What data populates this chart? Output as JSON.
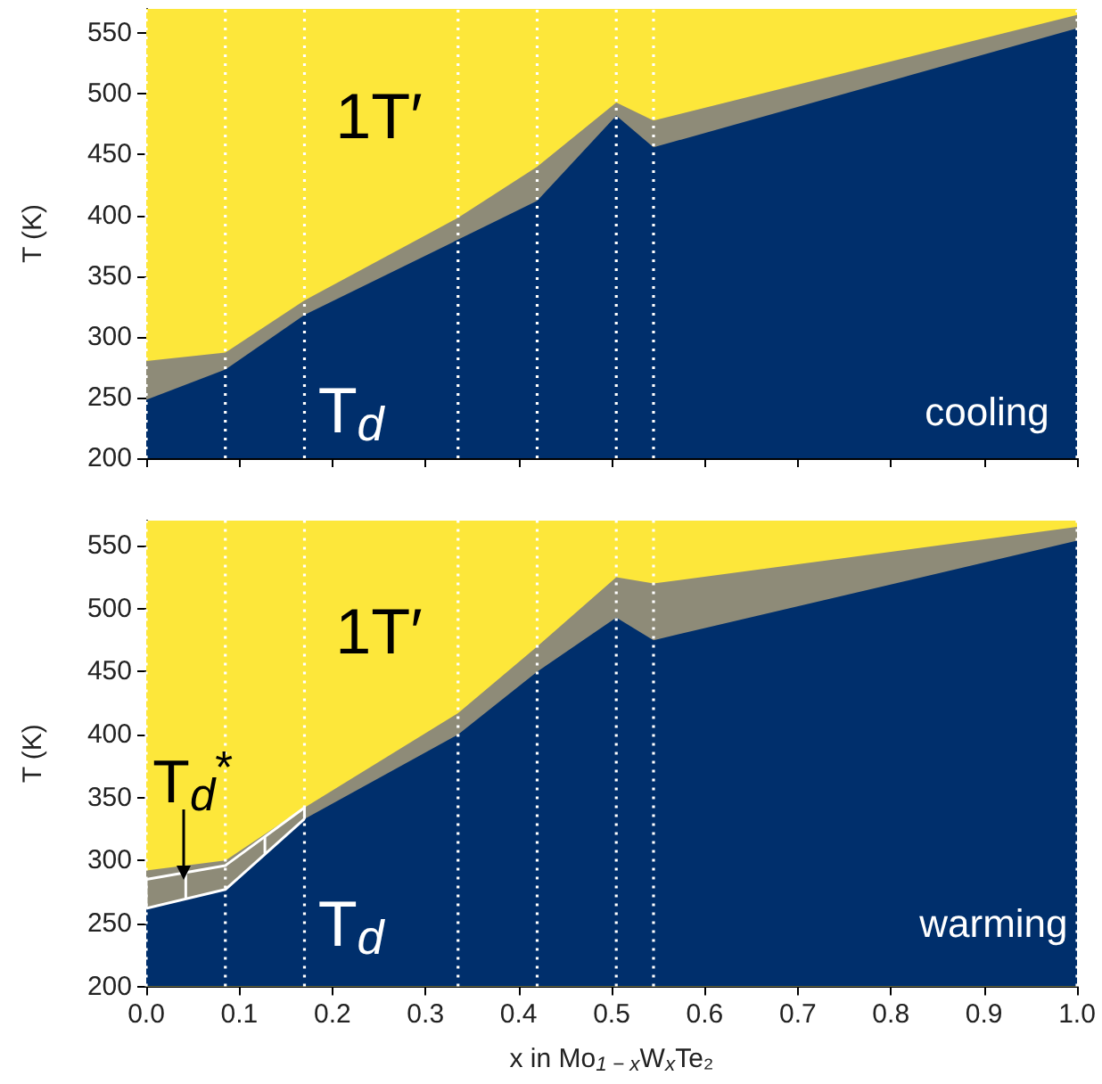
{
  "chart_data": [
    {
      "type": "area",
      "ylabel": "T (K)",
      "marker": "none",
      "tick_labels": "y",
      "x": [
        0,
        0.085,
        0.17,
        0.335,
        0.42,
        0.505,
        0.545,
        1.0
      ],
      "xlim": [
        0,
        1
      ],
      "xticks": [
        {
          "value": 0,
          "label": null
        },
        {
          "value": 0.1,
          "label": null
        },
        {
          "value": 0.2,
          "label": null
        },
        {
          "value": 0.3,
          "label": null
        },
        {
          "value": 0.4,
          "label": null
        },
        {
          "value": 0.5,
          "label": null
        },
        {
          "value": 0.6,
          "label": null
        },
        {
          "value": 0.7,
          "label": null
        },
        {
          "value": 0.8,
          "label": null
        },
        {
          "value": 0.9,
          "label": null
        },
        {
          "value": 1,
          "label": null
        }
      ],
      "ylim": [
        200,
        570
      ],
      "yticks": [
        200,
        250,
        300,
        350,
        400,
        450,
        500,
        550
      ],
      "series": [
        {
          "color": "#8e8b78",
          "values": [
            280,
            287,
            330,
            398,
            440,
            493,
            478,
            565
          ]
        },
        {
          "color": "#002f6c",
          "values": [
            248,
            273,
            318,
            380,
            412,
            482,
            456,
            554
          ]
        }
      ],
      "bands": [
        {
          "axis": "y",
          "from": 200,
          "to": 570,
          "color": "#fde73a"
        }
      ],
      "ref_lines": [
        {
          "axis": "x",
          "value": 0,
          "color": "#ffffff",
          "line_style": "dotted"
        },
        {
          "axis": "x",
          "value": 0.085,
          "color": "#ffffff",
          "line_style": "dotted"
        },
        {
          "axis": "x",
          "value": 0.17,
          "color": "#ffffff",
          "line_style": "dotted"
        },
        {
          "axis": "x",
          "value": 0.335,
          "color": "#ffffff",
          "line_style": "dotted"
        },
        {
          "axis": "x",
          "value": 0.42,
          "color": "#ffffff",
          "line_style": "dotted"
        },
        {
          "axis": "x",
          "value": 0.505,
          "color": "#ffffff",
          "line_style": "dotted"
        },
        {
          "axis": "x",
          "value": 0.545,
          "color": "#ffffff",
          "line_style": "dotted"
        },
        {
          "axis": "x",
          "value": 1.0,
          "color": "#ffffff",
          "line_style": "dotted"
        }
      ],
      "annotations": [
        "1T′",
        "T$_{d}$",
        "cooling"
      ]
    },
    {
      "type": "area",
      "ylabel": "T (K)",
      "xlabel": "x in Mo$_{1 − x}$W$_{x}$Te₂",
      "marker": "none",
      "x": [
        0,
        0.085,
        0.17,
        0.335,
        0.42,
        0.505,
        0.545,
        1.0
      ],
      "xlim": [
        0,
        1
      ],
      "xticks": [
        {
          "value": 0,
          "label": "0.0"
        },
        0.1,
        0.2,
        0.3,
        0.4,
        0.5,
        0.6,
        0.7,
        0.8,
        0.9,
        {
          "value": 1,
          "label": "1.0"
        }
      ],
      "ylim": [
        200,
        570
      ],
      "yticks": [
        200,
        250,
        300,
        350,
        400,
        450,
        500,
        550
      ],
      "series": [
        {
          "color": "#8e8b78",
          "values": [
            292,
            300,
            342,
            417,
            470,
            525,
            520,
            565
          ]
        },
        {
          "color": "#002f6c",
          "values": [
            262,
            277,
            333,
            400,
            450,
            493,
            475,
            554
          ]
        },
        {
          "type": "line",
          "color": "#ffffff",
          "x": [
            0,
            0.085,
            0.17
          ],
          "values": [
            285,
            296,
            342
          ]
        }
      ],
      "bands": [
        {
          "axis": "y",
          "from": 200,
          "to": 570,
          "color": "#fde73a"
        }
      ],
      "ref_lines": [
        {
          "axis": "x",
          "value": 0,
          "color": "#ffffff",
          "line_style": "dotted"
        },
        {
          "axis": "x",
          "value": 0.085,
          "color": "#ffffff",
          "line_style": "dotted"
        },
        {
          "axis": "x",
          "value": 0.17,
          "color": "#ffffff",
          "line_style": "dotted"
        },
        {
          "axis": "x",
          "value": 0.335,
          "color": "#ffffff",
          "line_style": "dotted"
        },
        {
          "axis": "x",
          "value": 0.42,
          "color": "#ffffff",
          "line_style": "dotted"
        },
        {
          "axis": "x",
          "value": 0.505,
          "color": "#ffffff",
          "line_style": "dotted"
        },
        {
          "axis": "x",
          "value": 0.545,
          "color": "#ffffff",
          "line_style": "dotted"
        },
        {
          "axis": "x",
          "value": 1.0,
          "color": "#ffffff",
          "line_style": "dotted"
        }
      ],
      "annotations": [
        "1T′",
        "T$_{d}$$^{*}$",
        "T$_{d}$",
        "warming"
      ]
    }
  ]
}
